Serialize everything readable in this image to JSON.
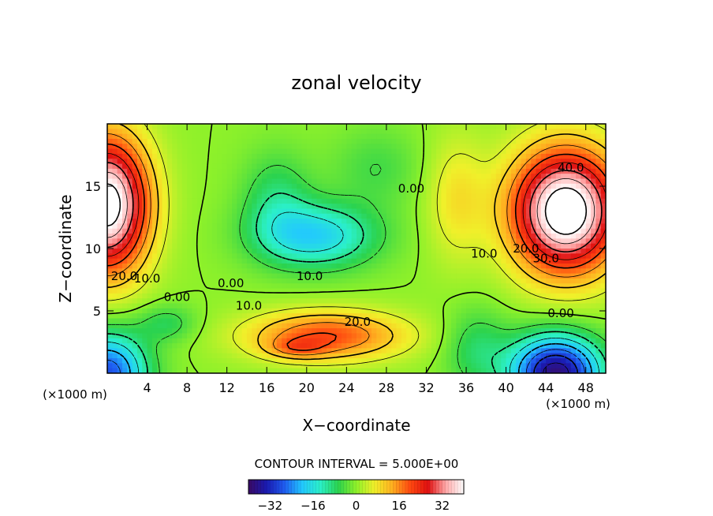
{
  "chart_data": {
    "type": "heatmap",
    "title": "zonal velocity",
    "xlabel": "X−coordinate",
    "ylabel": "Z−coordinate",
    "x_unit_left": "(×1000 m)",
    "x_unit_right": "(×1000 m)",
    "xlim": [
      0,
      50
    ],
    "ylim": [
      0,
      20
    ],
    "x_ticks": [
      4,
      8,
      12,
      16,
      20,
      24,
      28,
      32,
      36,
      40,
      44,
      48
    ],
    "y_ticks": [
      5,
      10,
      15
    ],
    "contour_interval_text": "CONTOUR INTERVAL = 5.000E+00",
    "contour_labels": [
      {
        "text": "40.0",
        "x": 46.5,
        "y": 16.5
      },
      {
        "text": "30.0",
        "x": 44.0,
        "y": 9.2
      },
      {
        "text": "20.0",
        "x": 42.0,
        "y": 10.0
      },
      {
        "text": "10.0",
        "x": 37.8,
        "y": 9.6
      },
      {
        "text": "0.00",
        "x": 30.5,
        "y": 14.8
      },
      {
        "text": "0.00",
        "x": 45.5,
        "y": 4.8
      },
      {
        "text": "20.0",
        "x": 1.7,
        "y": 7.8
      },
      {
        "text": "10.0",
        "x": 4.0,
        "y": 7.6
      },
      {
        "text": "0.00",
        "x": 7.0,
        "y": 6.1
      },
      {
        "text": "0.00",
        "x": 12.4,
        "y": 7.2
      },
      {
        "text": "10.0",
        "x": 20.3,
        "y": 7.8
      },
      {
        "text": "10.0",
        "x": 14.2,
        "y": 5.4
      },
      {
        "text": "20.0",
        "x": 25.1,
        "y": 4.1
      }
    ],
    "colorbar": {
      "range": [
        -40,
        40
      ],
      "ticks": [
        -32,
        -16,
        0,
        16,
        32
      ],
      "tick_labels": [
        "−32",
        "−16",
        "0",
        "16",
        "32"
      ],
      "colormap": [
        "#3a0a63",
        "#1a1ab0",
        "#1f5cf0",
        "#22c8ff",
        "#2bf0c8",
        "#2bd34e",
        "#8ef12a",
        "#f0f02a",
        "#ffb020",
        "#ff4a10",
        "#e01010",
        "#ffa8a8",
        "#ffffff"
      ]
    },
    "contour_levels": [
      -35,
      -30,
      -25,
      -20,
      -15,
      -10,
      -5,
      0,
      5,
      10,
      15,
      20,
      25,
      30,
      35,
      40
    ]
  }
}
